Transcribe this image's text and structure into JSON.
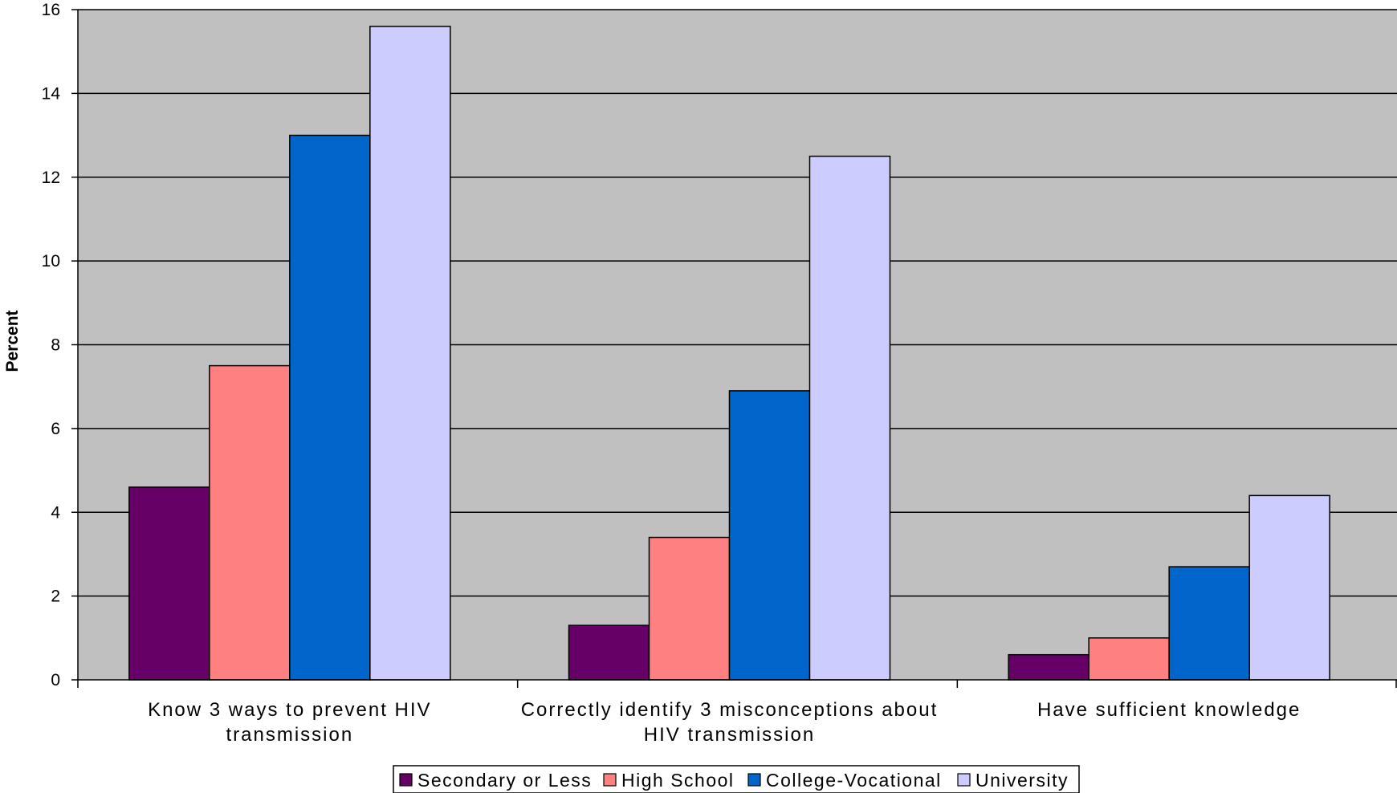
{
  "chart_data": {
    "type": "bar",
    "title": "",
    "xlabel": "",
    "ylabel": "Percent",
    "ylim": [
      0,
      16
    ],
    "yticks": [
      0,
      2,
      4,
      6,
      8,
      10,
      12,
      14,
      16
    ],
    "categories": [
      [
        "Know 3 ways to prevent HIV",
        "transmission"
      ],
      [
        "Correctly identify 3 misconceptions about",
        "HIV transmission"
      ],
      [
        "Have sufficient knowledge"
      ]
    ],
    "series": [
      {
        "name": "Secondary or Less",
        "color": "#660066",
        "values": [
          4.6,
          1.3,
          0.6
        ]
      },
      {
        "name": "High School",
        "color": "#ff8080",
        "values": [
          7.5,
          3.4,
          1.0
        ]
      },
      {
        "name": "College-Vocational",
        "color": "#0066cc",
        "values": [
          13.0,
          6.9,
          2.7
        ]
      },
      {
        "name": "University",
        "color": "#ccccff",
        "values": [
          15.6,
          12.5,
          4.4
        ]
      }
    ],
    "grid": true,
    "plot_background": "#c0c0c0",
    "legend_position": "bottom-center"
  }
}
